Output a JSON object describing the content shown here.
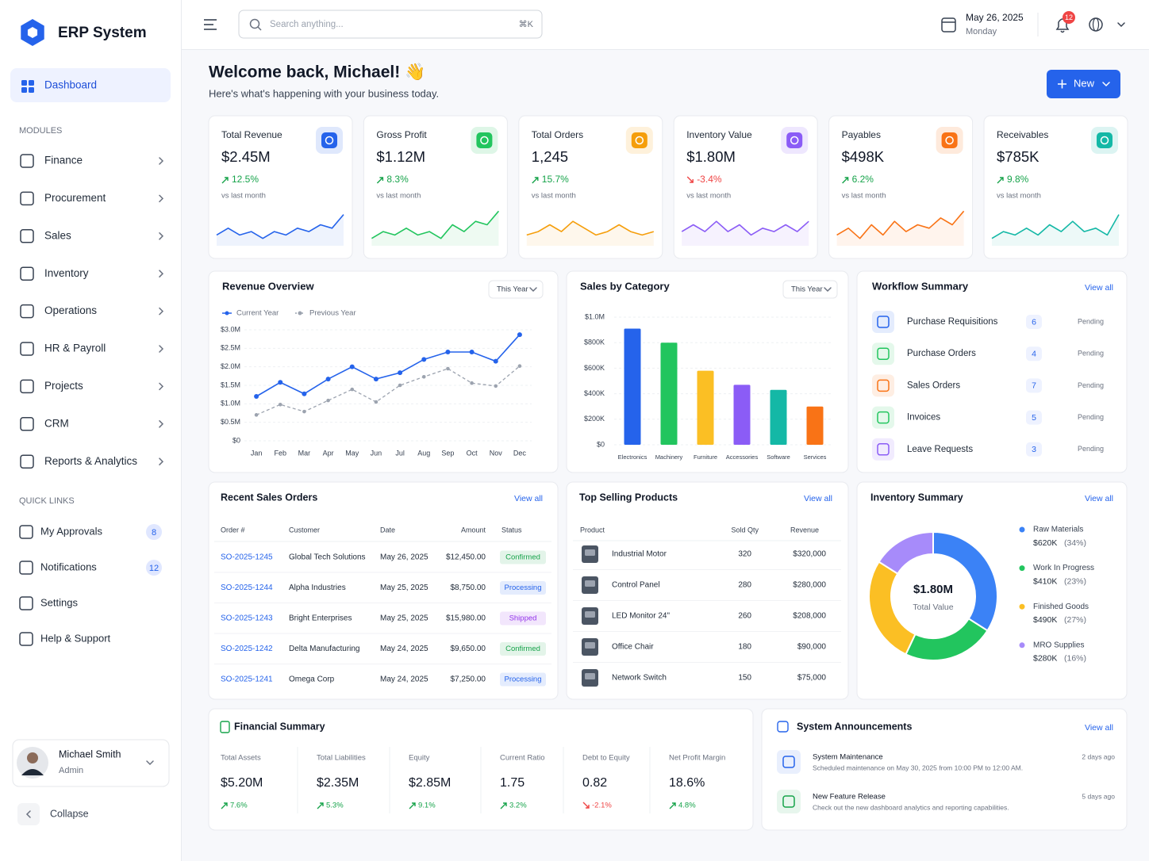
{
  "sidebar": {
    "brand": "ERP System",
    "active": "Dashboard",
    "modules_label": "MODULES",
    "modules": [
      "Finance",
      "Procurement",
      "Sales",
      "Inventory",
      "Operations",
      "HR & Payroll",
      "Projects",
      "CRM",
      "Reports & Analytics"
    ],
    "quick_links_label": "QUICK LINKS",
    "quick_links": [
      {
        "label": "My Approvals",
        "badge": 8
      },
      {
        "label": "Notifications",
        "badge": 12
      },
      {
        "label": "Settings"
      },
      {
        "label": "Help & Support"
      }
    ],
    "user": {
      "name": "Michael Smith",
      "role": "Admin"
    },
    "collapse": "Collapse"
  },
  "header": {
    "search_placeholder": "Search anything...",
    "shortcut": "⌘K",
    "date": "May 26, 2025",
    "weekday": "Monday",
    "notification_count": 12
  },
  "welcome": {
    "title": "Welcome back, Michael! 👋",
    "subtitle": "Here's what's happening with your business today.",
    "new_button": "New"
  },
  "kpi_cards": {
    "spark_ylim": [
      0,
      10
    ],
    "cards": [
      {
        "label": "Total Revenue",
        "value": "$2.45M",
        "change": "12.5%",
        "note": "vs last month",
        "color": "#2563eb",
        "spark": [
          2,
          4,
          2,
          3,
          1,
          3,
          2,
          4,
          3,
          5,
          4,
          8
        ]
      },
      {
        "label": "Gross Profit",
        "value": "$1.12M",
        "change": "8.3%",
        "note": "vs last month",
        "color": "#22c55e",
        "spark": [
          1,
          3,
          2,
          4,
          2,
          3,
          1,
          5,
          3,
          6,
          5,
          9
        ]
      },
      {
        "label": "Total Orders",
        "value": "1,245",
        "change": "15.7%",
        "note": "vs last month",
        "color": "#f59e0b",
        "spark": [
          2,
          3,
          5,
          3,
          6,
          4,
          2,
          3,
          5,
          3,
          2,
          3
        ]
      },
      {
        "label": "Inventory Value",
        "value": "$1.80M",
        "change": "-3.4%",
        "note": "vs last month",
        "color": "#8b5cf6",
        "spark": [
          3,
          5,
          3,
          6,
          3,
          5,
          2,
          4,
          3,
          5,
          3,
          6
        ]
      },
      {
        "label": "Payables",
        "value": "$498K",
        "change": "6.2%",
        "note": "vs last month",
        "color": "#f97316",
        "spark": [
          2,
          4,
          1,
          5,
          2,
          6,
          3,
          5,
          4,
          7,
          5,
          9
        ]
      },
      {
        "label": "Receivables",
        "value": "$785K",
        "change": "9.8%",
        "note": "vs last month",
        "color": "#14b8a6",
        "spark": [
          1,
          3,
          2,
          4,
          2,
          5,
          3,
          6,
          3,
          4,
          2,
          8
        ]
      }
    ]
  },
  "revenue_overview": {
    "title": "Revenue Overview",
    "period": "This Year",
    "chart": {
      "type": "line",
      "categories": [
        "Jan",
        "Feb",
        "Mar",
        "Apr",
        "May",
        "Jun",
        "Jul",
        "Aug",
        "Sep",
        "Oct",
        "Nov",
        "Dec"
      ],
      "series": [
        {
          "name": "Current Year",
          "color": "#2563eb",
          "values": [
            1.2,
            1.58,
            1.27,
            1.67,
            2.0,
            1.67,
            1.84,
            2.2,
            2.4,
            2.4,
            2.15,
            2.87
          ]
        },
        {
          "name": "Previous Year",
          "color": "#9ca3af",
          "values": [
            0.7,
            0.98,
            0.79,
            1.09,
            1.39,
            1.05,
            1.5,
            1.73,
            1.95,
            1.56,
            1.48,
            2.02
          ]
        }
      ],
      "ylim": [
        0,
        3
      ],
      "yticks": [
        {
          "value": 0,
          "label": "$0"
        },
        {
          "value": 0.5,
          "label": "$0.5M"
        },
        {
          "value": 1,
          "label": "$1.0M"
        },
        {
          "value": 1.5,
          "label": "$1.5M"
        },
        {
          "value": 2,
          "label": "$2.0M"
        },
        {
          "value": 2.5,
          "label": "$2.5M"
        },
        {
          "value": 3,
          "label": "$3.0M"
        }
      ],
      "grid": true
    }
  },
  "sales_by_category": {
    "title": "Sales by Category",
    "period": "This Year",
    "chart": {
      "type": "bar",
      "categories": [
        "Electronics",
        "Machinery",
        "Furniture",
        "Accessories",
        "Software",
        "Services"
      ],
      "values": [
        910000,
        800000,
        580000,
        470000,
        430000,
        300000
      ],
      "colors": [
        "#2563eb",
        "#22c55e",
        "#fbbf24",
        "#8b5cf6",
        "#14b8a6",
        "#f97316"
      ],
      "ylim": [
        0,
        1000000
      ],
      "yticks": [
        {
          "value": 0,
          "label": "$0"
        },
        {
          "value": 200000,
          "label": "$200K"
        },
        {
          "value": 400000,
          "label": "$400K"
        },
        {
          "value": 600000,
          "label": "$600K"
        },
        {
          "value": 800000,
          "label": "$800K"
        },
        {
          "value": 1000000,
          "label": "$1.0M"
        }
      ],
      "grid": true
    }
  },
  "workflow_summary": {
    "title": "Workflow Summary",
    "view_all": "View all",
    "items": [
      {
        "label": "Purchase Requisitions",
        "count": 6,
        "status": "Pending",
        "color": "#2563eb"
      },
      {
        "label": "Purchase Orders",
        "count": 4,
        "status": "Pending",
        "color": "#22c55e"
      },
      {
        "label": "Sales Orders",
        "count": 7,
        "status": "Pending",
        "color": "#f97316"
      },
      {
        "label": "Invoices",
        "count": 5,
        "status": "Pending",
        "color": "#22c55e"
      },
      {
        "label": "Leave Requests",
        "count": 3,
        "status": "Pending",
        "color": "#8b5cf6"
      }
    ]
  },
  "recent_sales_orders": {
    "title": "Recent Sales Orders",
    "view_all": "View all",
    "columns": [
      "Order #",
      "Customer",
      "Date",
      "Amount",
      "Status"
    ],
    "rows": [
      {
        "order": "SO-2025-1245",
        "customer": "Global Tech Solutions",
        "date": "May 26, 2025",
        "amount": "$12,450.00",
        "status": "Confirmed",
        "status_color": "#16a34a"
      },
      {
        "order": "SO-2025-1244",
        "customer": "Alpha Industries",
        "date": "May 25, 2025",
        "amount": "$8,750.00",
        "status": "Processing",
        "status_color": "#2563eb"
      },
      {
        "order": "SO-2025-1243",
        "customer": "Bright Enterprises",
        "date": "May 25, 2025",
        "amount": "$15,980.00",
        "status": "Shipped",
        "status_color": "#9333ea"
      },
      {
        "order": "SO-2025-1242",
        "customer": "Delta Manufacturing",
        "date": "May 24, 2025",
        "amount": "$9,650.00",
        "status": "Confirmed",
        "status_color": "#16a34a"
      },
      {
        "order": "SO-2025-1241",
        "customer": "Omega Corp",
        "date": "May 24, 2025",
        "amount": "$7,250.00",
        "status": "Processing",
        "status_color": "#2563eb"
      }
    ]
  },
  "top_selling_products": {
    "title": "Top Selling Products",
    "view_all": "View all",
    "columns": [
      "Product",
      "Sold Qty",
      "Revenue"
    ],
    "rows": [
      {
        "product": "Industrial Motor",
        "sold_qty": 320,
        "revenue": "$320,000"
      },
      {
        "product": "Control Panel",
        "sold_qty": 280,
        "revenue": "$280,000"
      },
      {
        "product": "LED Monitor 24\"",
        "sold_qty": 260,
        "revenue": "$208,000"
      },
      {
        "product": "Office Chair",
        "sold_qty": 180,
        "revenue": "$90,000"
      },
      {
        "product": "Network Switch",
        "sold_qty": 150,
        "revenue": "$75,000"
      }
    ]
  },
  "inventory_summary": {
    "title": "Inventory Summary",
    "view_all": "View all",
    "total": "$1.80M",
    "total_label": "Total Value",
    "chart": {
      "type": "pie",
      "categories": [
        "Raw Materials",
        "Work In Progress",
        "Finished Goods",
        "MRO Supplies"
      ],
      "amounts": [
        "$620K",
        "$410K",
        "$490K",
        "$280K"
      ],
      "values": [
        34,
        23,
        27,
        16
      ],
      "value_labels": [
        "(34%)",
        "(23%)",
        "(27%)",
        "(16%)"
      ],
      "colors": [
        "#3b82f6",
        "#22c55e",
        "#fbbf24",
        "#a78bfa"
      ]
    }
  },
  "financial_summary": {
    "title": "Financial Summary",
    "items": [
      {
        "label": "Total Assets",
        "value": "$5.20M",
        "change": "7.6%"
      },
      {
        "label": "Total Liabilities",
        "value": "$2.35M",
        "change": "5.3%"
      },
      {
        "label": "Equity",
        "value": "$2.85M",
        "change": "9.1%"
      },
      {
        "label": "Current Ratio",
        "value": "1.75",
        "change": "3.2%"
      },
      {
        "label": "Debt to Equity",
        "value": "0.82",
        "change": "-2.1%"
      },
      {
        "label": "Net Profit Margin",
        "value": "18.6%",
        "change": "4.8%"
      }
    ]
  },
  "system_announcements": {
    "title": "System Announcements",
    "view_all": "View all",
    "items": [
      {
        "title": "System Maintenance",
        "description": "Scheduled maintenance on May 30, 2025 from 10:00 PM to 12:00 AM.",
        "time": "2 days ago"
      },
      {
        "title": "New Feature Release",
        "description": "Check out the new dashboard analytics and reporting capabilities.",
        "time": "5 days ago"
      }
    ]
  }
}
